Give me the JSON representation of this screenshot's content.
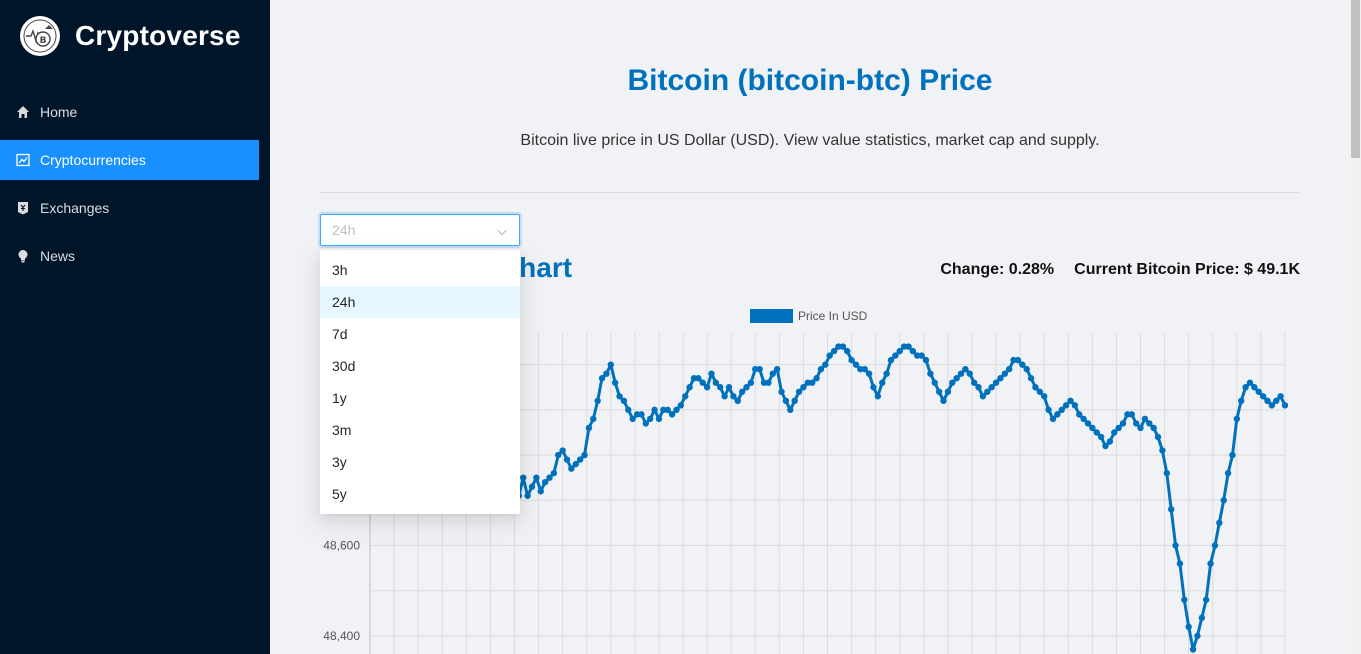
{
  "app": {
    "name": "Cryptoverse",
    "logo_icon": "cryptocurrency-logo-icon"
  },
  "sidebar": {
    "items": [
      {
        "label": "Home",
        "icon": "home-icon",
        "active": false
      },
      {
        "label": "Cryptocurrencies",
        "icon": "fund-icon",
        "active": true
      },
      {
        "label": "Exchanges",
        "icon": "money-collect-icon",
        "active": false
      },
      {
        "label": "News",
        "icon": "bulb-icon",
        "active": false
      }
    ]
  },
  "main": {
    "title": "Bitcoin (bitcoin-btc) Price",
    "subtitle": "Bitcoin live price in US Dollar (USD). View value statistics, market cap and supply.",
    "select": {
      "placeholder": "24h",
      "options": [
        "3h",
        "24h",
        "7d",
        "30d",
        "1y",
        "3m",
        "3y",
        "5y"
      ],
      "highlighted": "24h"
    },
    "chart_heading": "Bitcoin Price Chart",
    "change": "Change: 0.28%",
    "current_price": "Current Bitcoin Price: $ 49.1K"
  },
  "colors": {
    "sidebar_bg": "#001529",
    "accent": "#1890ff",
    "title": "#0071bd",
    "line": "#0071bd"
  },
  "chart_data": {
    "type": "line",
    "title": "",
    "legend": [
      "Price In USD"
    ],
    "legend_placement": "top",
    "ylabel": "",
    "xlabel": "",
    "ylim": [
      48360,
      49070
    ],
    "yticks": [
      48400,
      48600,
      48800
    ],
    "grid": true,
    "series": [
      {
        "name": "Price In USD",
        "values": [
          48880,
          48960,
          48930,
          48890,
          48850,
          48900,
          48880,
          48840,
          48800,
          48820,
          48790,
          48850,
          48870,
          48880,
          48870,
          48880,
          48860,
          48840,
          48830,
          48870,
          48910,
          48960,
          48950,
          48920,
          48900,
          48880,
          48930,
          48960,
          48990,
          49010,
          48940,
          48860,
          48790,
          48740,
          48710,
          48750,
          48710,
          48730,
          48750,
          48720,
          48740,
          48750,
          48760,
          48800,
          48810,
          48790,
          48770,
          48780,
          48790,
          48800,
          48860,
          48880,
          48920,
          48970,
          48980,
          49000,
          48960,
          48930,
          48920,
          48900,
          48880,
          48890,
          48890,
          48870,
          48880,
          48900,
          48880,
          48900,
          48900,
          48890,
          48900,
          48910,
          48930,
          48950,
          48970,
          48970,
          48960,
          48950,
          48980,
          48960,
          48950,
          48930,
          48950,
          48930,
          48920,
          48940,
          48950,
          48960,
          48990,
          48990,
          48960,
          48960,
          48980,
          48990,
          48940,
          48920,
          48900,
          48920,
          48940,
          48950,
          48960,
          48960,
          48970,
          48990,
          49000,
          49020,
          49030,
          49040,
          49040,
          49030,
          49010,
          49000,
          48990,
          48990,
          48980,
          48950,
          48930,
          48960,
          48980,
          49010,
          49020,
          49030,
          49040,
          49040,
          49030,
          49020,
          49020,
          49010,
          48980,
          48960,
          48940,
          48920,
          48940,
          48960,
          48970,
          48980,
          48990,
          48980,
          48960,
          48950,
          48930,
          48940,
          48950,
          48960,
          48970,
          48980,
          48990,
          49010,
          49010,
          49000,
          48990,
          48970,
          48950,
          48940,
          48930,
          48900,
          48880,
          48890,
          48900,
          48910,
          48920,
          48910,
          48890,
          48880,
          48870,
          48860,
          48850,
          48840,
          48820,
          48830,
          48850,
          48860,
          48870,
          48890,
          48890,
          48870,
          48860,
          48880,
          48870,
          48860,
          48840,
          48810,
          48760,
          48680,
          48600,
          48560,
          48480,
          48420,
          48370,
          48400,
          48440,
          48480,
          48560,
          48600,
          48650,
          48700,
          48760,
          48800,
          48880,
          48920,
          48950,
          48960,
          48950,
          48940,
          48930,
          48920,
          48910,
          48920,
          48930,
          48910
        ]
      }
    ]
  }
}
